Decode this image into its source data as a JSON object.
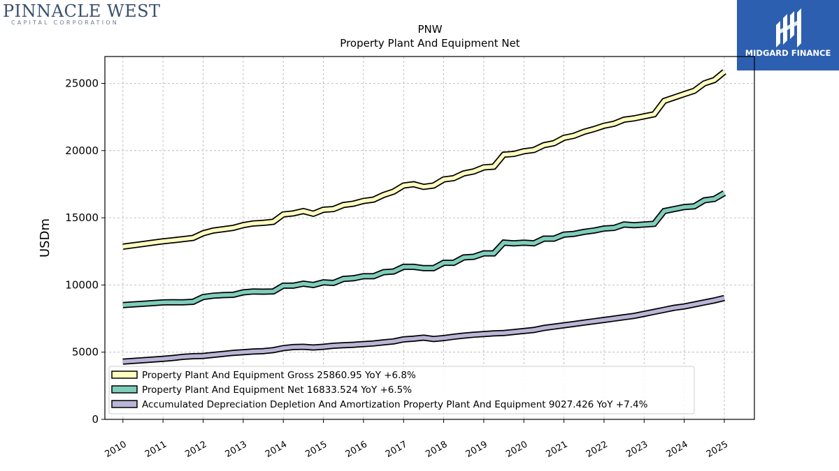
{
  "logo_left": {
    "name": "PINNACLE WEST",
    "sub": "CAPITAL CORPORATION"
  },
  "logo_right": {
    "name": "MIDGARD FINANCE"
  },
  "colors": {
    "gross": "#ffffc0",
    "net": "#7fcdbb",
    "depr": "#b8b5d6",
    "outline": "#000000",
    "brand_blue": "#2d5fb0"
  },
  "chart_data": {
    "type": "line",
    "title": "PNW",
    "subtitle": "Property Plant And Equipment Net",
    "ylabel": "USDm",
    "xlabel": "",
    "ylim": [
      0,
      27000
    ],
    "xlim": [
      2009.55,
      2025.75
    ],
    "yticks": [
      0,
      5000,
      10000,
      15000,
      20000,
      25000
    ],
    "xticks": [
      "2010",
      "2011",
      "2012",
      "2013",
      "2014",
      "2015",
      "2016",
      "2017",
      "2018",
      "2019",
      "2020",
      "2021",
      "2022",
      "2023",
      "2024",
      "2025"
    ],
    "grid": true,
    "legend_position": "lower-left",
    "series": [
      {
        "name": "Property Plant And Equipment Gross",
        "legend": "Property Plant And Equipment Gross  25860.95 YoY +6.8%",
        "color": "#ffffc0",
        "x": [
          2010.0,
          2010.25,
          2010.5,
          2010.75,
          2011.0,
          2011.25,
          2011.5,
          2011.75,
          2012.0,
          2012.25,
          2012.5,
          2012.75,
          2013.0,
          2013.25,
          2013.5,
          2013.75,
          2014.0,
          2014.25,
          2014.5,
          2014.75,
          2015.0,
          2015.25,
          2015.5,
          2015.75,
          2016.0,
          2016.25,
          2016.5,
          2016.75,
          2017.0,
          2017.25,
          2017.5,
          2017.75,
          2018.0,
          2018.25,
          2018.5,
          2018.75,
          2019.0,
          2019.25,
          2019.5,
          2019.75,
          2020.0,
          2020.25,
          2020.5,
          2020.75,
          2021.0,
          2021.25,
          2021.5,
          2021.75,
          2022.0,
          2022.25,
          2022.5,
          2022.75,
          2023.0,
          2023.25,
          2023.5,
          2023.75,
          2024.0,
          2024.25,
          2024.5,
          2024.75,
          2025.0
        ],
        "y": [
          12850,
          12950,
          13050,
          13150,
          13250,
          13330,
          13410,
          13500,
          13850,
          14050,
          14150,
          14250,
          14450,
          14580,
          14620,
          14700,
          15250,
          15330,
          15500,
          15300,
          15600,
          15650,
          15950,
          16050,
          16250,
          16350,
          16700,
          16950,
          17400,
          17500,
          17300,
          17400,
          17850,
          17950,
          18300,
          18450,
          18750,
          18800,
          19700,
          19750,
          19950,
          20050,
          20400,
          20550,
          20950,
          21100,
          21400,
          21600,
          21850,
          22000,
          22300,
          22400,
          22550,
          22700,
          23700,
          23950,
          24200,
          24450,
          25000,
          25250,
          25860.95
        ]
      },
      {
        "name": "Property Plant And Equipment Net",
        "legend": "Property Plant And Equipment Net  16833.524 YoY +6.5%",
        "color": "#7fcdbb",
        "x": [
          2010.0,
          2010.25,
          2010.5,
          2010.75,
          2011.0,
          2011.25,
          2011.5,
          2011.75,
          2012.0,
          2012.25,
          2012.5,
          2012.75,
          2013.0,
          2013.25,
          2013.5,
          2013.75,
          2014.0,
          2014.25,
          2014.5,
          2014.75,
          2015.0,
          2015.25,
          2015.5,
          2015.75,
          2016.0,
          2016.25,
          2016.5,
          2016.75,
          2017.0,
          2017.25,
          2017.5,
          2017.75,
          2018.0,
          2018.25,
          2018.5,
          2018.75,
          2019.0,
          2019.25,
          2019.5,
          2019.75,
          2020.0,
          2020.25,
          2020.5,
          2020.75,
          2021.0,
          2021.25,
          2021.5,
          2021.75,
          2022.0,
          2022.25,
          2022.5,
          2022.75,
          2023.0,
          2023.25,
          2023.5,
          2023.75,
          2024.0,
          2024.25,
          2024.5,
          2024.75,
          2025.0
        ],
        "y": [
          8500,
          8550,
          8600,
          8650,
          8700,
          8720,
          8710,
          8750,
          9100,
          9200,
          9250,
          9270,
          9450,
          9520,
          9500,
          9520,
          9950,
          9950,
          10100,
          10000,
          10200,
          10150,
          10450,
          10500,
          10650,
          10650,
          10950,
          11000,
          11350,
          11350,
          11250,
          11250,
          11650,
          11650,
          12050,
          12100,
          12350,
          12350,
          13150,
          13100,
          13150,
          13100,
          13450,
          13450,
          13750,
          13800,
          13950,
          14050,
          14200,
          14250,
          14500,
          14450,
          14500,
          14550,
          15500,
          15650,
          15800,
          15850,
          16300,
          16400,
          16833.524
        ]
      },
      {
        "name": "Accumulated Depreciation Depletion And Amortization Property Plant And Equipment",
        "legend": "Accumulated Depreciation Depletion And Amortization Property Plant And Equipment  9027.426 YoY +7.4%",
        "color": "#b8b5d6",
        "x": [
          2010.0,
          2010.25,
          2010.5,
          2010.75,
          2011.0,
          2011.25,
          2011.5,
          2011.75,
          2012.0,
          2012.25,
          2012.5,
          2012.75,
          2013.0,
          2013.25,
          2013.5,
          2013.75,
          2014.0,
          2014.25,
          2014.5,
          2014.75,
          2015.0,
          2015.25,
          2015.5,
          2015.75,
          2016.0,
          2016.25,
          2016.5,
          2016.75,
          2017.0,
          2017.25,
          2017.5,
          2017.75,
          2018.0,
          2018.25,
          2018.5,
          2018.75,
          2019.0,
          2019.25,
          2019.5,
          2019.75,
          2020.0,
          2020.25,
          2020.5,
          2020.75,
          2021.0,
          2021.25,
          2021.5,
          2021.75,
          2022.0,
          2022.25,
          2022.5,
          2022.75,
          2023.0,
          2023.25,
          2023.5,
          2023.75,
          2024.0,
          2024.25,
          2024.5,
          2024.75,
          2025.0
        ],
        "y": [
          4300,
          4350,
          4400,
          4450,
          4500,
          4570,
          4650,
          4700,
          4720,
          4800,
          4870,
          4950,
          5000,
          5050,
          5080,
          5150,
          5300,
          5380,
          5400,
          5350,
          5400,
          5480,
          5520,
          5550,
          5600,
          5650,
          5730,
          5800,
          5950,
          6000,
          6080,
          5980,
          6050,
          6150,
          6230,
          6300,
          6350,
          6400,
          6430,
          6500,
          6580,
          6650,
          6800,
          6900,
          7000,
          7100,
          7200,
          7300,
          7400,
          7500,
          7600,
          7700,
          7850,
          8000,
          8150,
          8300,
          8400,
          8550,
          8700,
          8850,
          9027.426
        ]
      }
    ]
  }
}
